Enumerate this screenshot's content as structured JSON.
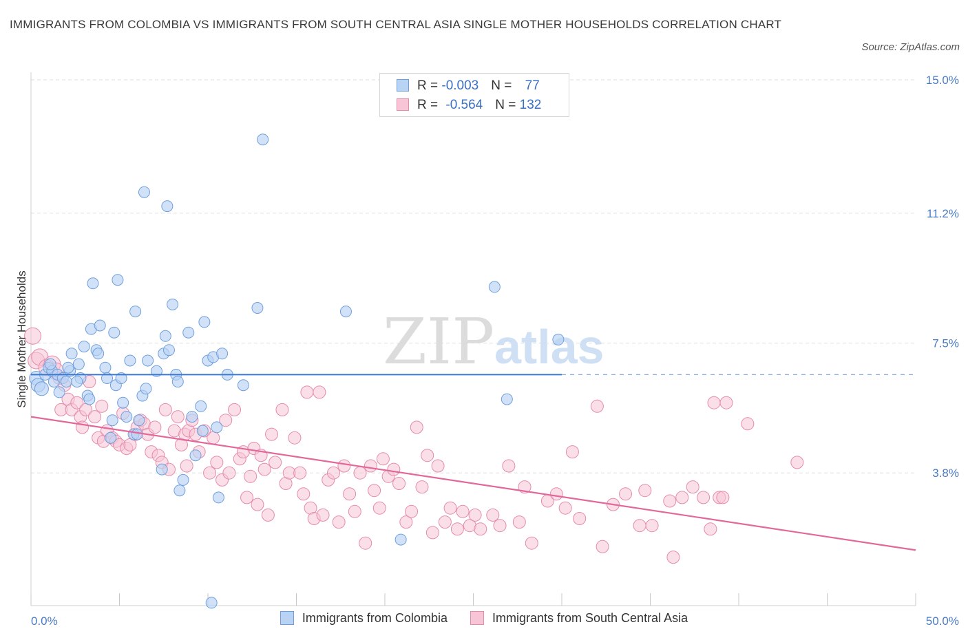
{
  "title": "IMMIGRANTS FROM COLOMBIA VS IMMIGRANTS FROM SOUTH CENTRAL ASIA SINGLE MOTHER HOUSEHOLDS CORRELATION CHART",
  "source": "Source: ZipAtlas.com",
  "watermark": {
    "zip": "ZIP",
    "atlas": "atlas"
  },
  "colors": {
    "blue_fill": "#b9d3f4",
    "blue_stroke": "#6f9fdc",
    "blue_line": "#3b78d0",
    "pink_fill": "#f7c5d6",
    "pink_stroke": "#e58bab",
    "pink_line": "#e2679a",
    "grid": "#dddddd",
    "tick_text": "#4a7cc4"
  },
  "legend": {
    "rows": [
      {
        "r_label": "R = ",
        "r_value": "-0.003",
        "n_label": "N = ",
        "n_value": "77"
      },
      {
        "r_label": "R = ",
        "r_value": "-0.564",
        "n_label": "N = ",
        "n_value": "132"
      }
    ]
  },
  "chart_data": {
    "type": "scatter",
    "title": "IMMIGRANTS FROM COLOMBIA VS IMMIGRANTS FROM SOUTH CENTRAL ASIA SINGLE MOTHER HOUSEHOLDS CORRELATION CHART",
    "xlabel": "",
    "ylabel": "Single Mother Households",
    "xlim": [
      0,
      50
    ],
    "ylim": [
      0,
      15.0
    ],
    "x_tick_labels": [
      "0.0%",
      "50.0%"
    ],
    "y_ticks": [
      3.8,
      7.5,
      11.2,
      15.0
    ],
    "y_tick_labels": [
      "3.8%",
      "7.5%",
      "11.2%",
      "15.0%"
    ],
    "grid": "horizontal dashed",
    "legend_placement": "top-center",
    "series": [
      {
        "name": "Immigrants from Colombia",
        "color": "blue",
        "trend": {
          "x0": 0,
          "y0": 6.6,
          "x1": 30,
          "y1": 6.6,
          "dashed_to": 50
        },
        "points": [
          [
            0.3,
            6.5
          ],
          [
            0.4,
            6.3
          ],
          [
            0.6,
            6.2
          ],
          [
            0.8,
            6.6
          ],
          [
            1.0,
            6.8
          ],
          [
            1.2,
            6.7
          ],
          [
            1.3,
            6.4
          ],
          [
            1.5,
            6.6
          ],
          [
            1.6,
            6.1
          ],
          [
            1.8,
            6.5
          ],
          [
            2.0,
            6.4
          ],
          [
            2.2,
            6.7
          ],
          [
            2.3,
            7.2
          ],
          [
            2.7,
            6.9
          ],
          [
            2.8,
            6.5
          ],
          [
            3.0,
            7.4
          ],
          [
            3.2,
            6.0
          ],
          [
            3.3,
            5.9
          ],
          [
            3.4,
            7.9
          ],
          [
            3.5,
            9.2
          ],
          [
            3.7,
            7.3
          ],
          [
            3.8,
            7.2
          ],
          [
            3.9,
            8.0
          ],
          [
            4.2,
            6.8
          ],
          [
            4.3,
            6.5
          ],
          [
            4.5,
            4.8
          ],
          [
            4.6,
            5.3
          ],
          [
            4.7,
            7.8
          ],
          [
            4.8,
            6.3
          ],
          [
            4.9,
            9.3
          ],
          [
            5.1,
            6.5
          ],
          [
            5.2,
            5.8
          ],
          [
            5.4,
            5.4
          ],
          [
            5.6,
            7.0
          ],
          [
            5.8,
            4.9
          ],
          [
            5.9,
            8.4
          ],
          [
            6.1,
            5.3
          ],
          [
            6.3,
            6.0
          ],
          [
            6.4,
            11.8
          ],
          [
            6.5,
            6.2
          ],
          [
            6.6,
            7.0
          ],
          [
            7.1,
            6.7
          ],
          [
            7.4,
            3.9
          ],
          [
            7.5,
            7.2
          ],
          [
            7.6,
            7.7
          ],
          [
            7.7,
            11.4
          ],
          [
            7.8,
            7.3
          ],
          [
            8.0,
            8.6
          ],
          [
            8.2,
            6.6
          ],
          [
            8.3,
            6.4
          ],
          [
            8.4,
            3.3
          ],
          [
            8.6,
            3.6
          ],
          [
            8.9,
            7.8
          ],
          [
            9.1,
            5.4
          ],
          [
            9.3,
            4.3
          ],
          [
            9.6,
            5.7
          ],
          [
            9.7,
            5.0
          ],
          [
            9.8,
            8.1
          ],
          [
            10.0,
            7.0
          ],
          [
            10.2,
            0.1
          ],
          [
            10.3,
            7.1
          ],
          [
            10.5,
            5.1
          ],
          [
            10.6,
            3.1
          ],
          [
            10.8,
            7.2
          ],
          [
            11.1,
            6.6
          ],
          [
            12.0,
            6.3
          ],
          [
            12.8,
            8.5
          ],
          [
            13.1,
            13.3
          ],
          [
            17.8,
            8.4
          ],
          [
            20.9,
            1.9
          ],
          [
            26.2,
            9.1
          ],
          [
            26.9,
            5.9
          ],
          [
            29.8,
            7.6
          ],
          [
            2.1,
            6.8
          ],
          [
            2.6,
            6.4
          ],
          [
            1.1,
            6.9
          ],
          [
            6.0,
            4.9
          ]
        ]
      },
      {
        "name": "Immigrants from South Central Asia",
        "color": "pink",
        "trend": {
          "x0": 0,
          "y0": 5.4,
          "x1": 50,
          "y1": 1.6
        },
        "points": [
          [
            0.1,
            7.7
          ],
          [
            0.3,
            7.0
          ],
          [
            0.5,
            7.1
          ],
          [
            0.9,
            6.8
          ],
          [
            1.2,
            6.9
          ],
          [
            1.4,
            6.7
          ],
          [
            1.6,
            6.5
          ],
          [
            1.7,
            5.6
          ],
          [
            1.9,
            6.3
          ],
          [
            2.1,
            5.9
          ],
          [
            2.3,
            5.6
          ],
          [
            2.6,
            5.8
          ],
          [
            2.8,
            5.4
          ],
          [
            2.9,
            5.1
          ],
          [
            3.1,
            5.6
          ],
          [
            3.3,
            6.4
          ],
          [
            3.6,
            5.4
          ],
          [
            3.8,
            4.8
          ],
          [
            4.0,
            5.7
          ],
          [
            4.1,
            4.7
          ],
          [
            4.3,
            5.0
          ],
          [
            4.6,
            4.8
          ],
          [
            4.8,
            4.7
          ],
          [
            5.0,
            4.6
          ],
          [
            5.2,
            5.5
          ],
          [
            5.4,
            4.5
          ],
          [
            5.6,
            4.6
          ],
          [
            5.9,
            4.9
          ],
          [
            6.0,
            5.1
          ],
          [
            6.2,
            5.3
          ],
          [
            6.4,
            5.2
          ],
          [
            6.6,
            4.9
          ],
          [
            6.8,
            4.4
          ],
          [
            7.0,
            5.1
          ],
          [
            7.2,
            4.3
          ],
          [
            7.4,
            4.1
          ],
          [
            7.6,
            5.6
          ],
          [
            7.8,
            3.9
          ],
          [
            8.1,
            5.0
          ],
          [
            8.3,
            5.4
          ],
          [
            8.5,
            4.6
          ],
          [
            8.7,
            4.9
          ],
          [
            8.9,
            5.0
          ],
          [
            9.1,
            5.3
          ],
          [
            9.3,
            4.9
          ],
          [
            9.5,
            4.4
          ],
          [
            9.8,
            5.0
          ],
          [
            10.1,
            3.8
          ],
          [
            10.3,
            4.8
          ],
          [
            10.5,
            4.1
          ],
          [
            10.8,
            3.6
          ],
          [
            11.0,
            5.3
          ],
          [
            11.2,
            3.8
          ],
          [
            11.5,
            5.6
          ],
          [
            11.8,
            4.2
          ],
          [
            12.0,
            4.4
          ],
          [
            12.2,
            3.1
          ],
          [
            12.4,
            3.7
          ],
          [
            12.6,
            4.5
          ],
          [
            12.8,
            2.9
          ],
          [
            13.0,
            4.3
          ],
          [
            13.2,
            3.9
          ],
          [
            13.4,
            2.6
          ],
          [
            13.6,
            4.9
          ],
          [
            13.8,
            4.1
          ],
          [
            14.2,
            5.6
          ],
          [
            14.4,
            3.5
          ],
          [
            14.6,
            3.8
          ],
          [
            14.9,
            4.8
          ],
          [
            15.2,
            3.8
          ],
          [
            15.4,
            3.2
          ],
          [
            15.6,
            6.1
          ],
          [
            15.8,
            2.8
          ],
          [
            16.0,
            2.5
          ],
          [
            16.3,
            6.1
          ],
          [
            16.5,
            2.6
          ],
          [
            16.8,
            3.6
          ],
          [
            17.1,
            3.8
          ],
          [
            17.4,
            2.4
          ],
          [
            17.7,
            4.0
          ],
          [
            18.0,
            3.2
          ],
          [
            18.3,
            2.7
          ],
          [
            18.6,
            3.8
          ],
          [
            18.9,
            1.8
          ],
          [
            19.2,
            4.0
          ],
          [
            19.4,
            3.3
          ],
          [
            19.7,
            2.8
          ],
          [
            19.9,
            4.2
          ],
          [
            20.2,
            3.7
          ],
          [
            20.5,
            3.9
          ],
          [
            20.8,
            3.5
          ],
          [
            21.2,
            2.4
          ],
          [
            21.5,
            2.7
          ],
          [
            21.8,
            5.1
          ],
          [
            22.1,
            3.4
          ],
          [
            22.4,
            4.3
          ],
          [
            22.7,
            2.1
          ],
          [
            23.0,
            4.0
          ],
          [
            23.4,
            2.4
          ],
          [
            23.7,
            2.8
          ],
          [
            24.1,
            2.2
          ],
          [
            24.4,
            2.7
          ],
          [
            24.8,
            2.3
          ],
          [
            25.1,
            2.6
          ],
          [
            25.4,
            2.2
          ],
          [
            26.1,
            2.6
          ],
          [
            26.5,
            2.3
          ],
          [
            27.0,
            4.0
          ],
          [
            27.6,
            2.4
          ],
          [
            27.9,
            3.4
          ],
          [
            28.3,
            1.8
          ],
          [
            29.2,
            3.0
          ],
          [
            29.7,
            3.2
          ],
          [
            30.2,
            2.8
          ],
          [
            30.6,
            4.4
          ],
          [
            31.0,
            2.5
          ],
          [
            32.0,
            5.7
          ],
          [
            32.3,
            1.7
          ],
          [
            32.9,
            2.9
          ],
          [
            33.6,
            3.2
          ],
          [
            34.4,
            2.3
          ],
          [
            34.7,
            3.3
          ],
          [
            35.1,
            2.3
          ],
          [
            36.1,
            3.0
          ],
          [
            36.3,
            1.4
          ],
          [
            36.8,
            3.1
          ],
          [
            37.4,
            3.4
          ],
          [
            38.0,
            3.1
          ],
          [
            38.4,
            2.2
          ],
          [
            38.6,
            5.8
          ],
          [
            38.9,
            3.1
          ],
          [
            39.1,
            3.1
          ],
          [
            39.3,
            5.8
          ],
          [
            40.5,
            5.2
          ],
          [
            43.3,
            4.1
          ],
          [
            8.8,
            4.0
          ]
        ]
      }
    ]
  },
  "bottom_legend": {
    "items": [
      {
        "label": "Immigrants from Colombia"
      },
      {
        "label": "Immigrants from South Central Asia"
      }
    ]
  }
}
